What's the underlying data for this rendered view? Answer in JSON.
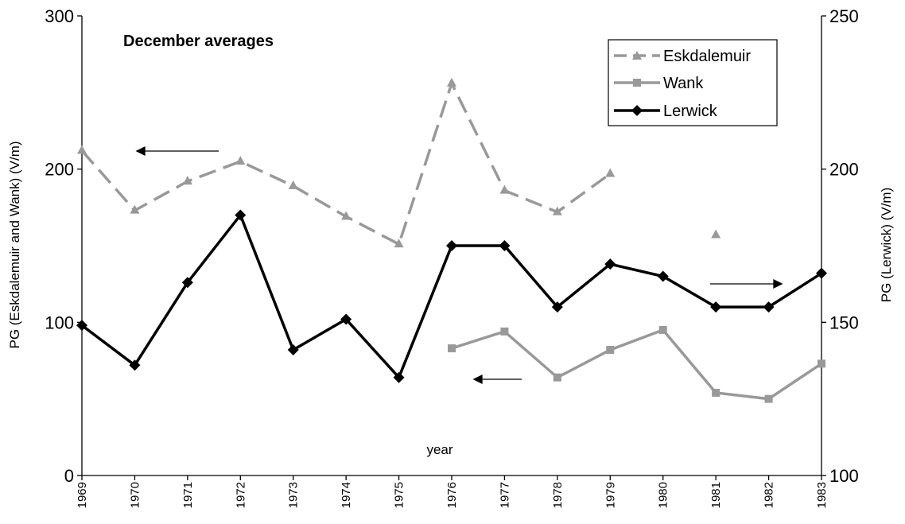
{
  "chart_data": {
    "type": "line",
    "title": "December averages",
    "xlabel": "year",
    "ylabel_left": "PG (Eskdalemuir and Wank) (V/m)",
    "ylabel_right": "PG (Lerwick) (V/m)",
    "categories": [
      "1969",
      "1970",
      "1971",
      "1972",
      "1973",
      "1974",
      "1975",
      "1976",
      "1977",
      "1978",
      "1979",
      "1980",
      "1981",
      "1982",
      "1983"
    ],
    "y_left": {
      "range": [
        0,
        300
      ],
      "ticks": [
        "0",
        "100",
        "200",
        "300"
      ]
    },
    "y_right": {
      "range": [
        100,
        250
      ],
      "ticks": [
        "100",
        "150",
        "200",
        "250"
      ]
    },
    "grid": false,
    "legend_position": "top-right",
    "series": [
      {
        "name": "Eskdalemuir",
        "axis": "left",
        "color": "#999999",
        "dashed": true,
        "marker": "triangle",
        "values": [
          212,
          173,
          192,
          205,
          189,
          169,
          151,
          256,
          186,
          172,
          197,
          null,
          157,
          null,
          null
        ]
      },
      {
        "name": "Wank",
        "axis": "left",
        "color": "#999999",
        "dashed": false,
        "marker": "square",
        "values": [
          null,
          null,
          null,
          null,
          null,
          null,
          null,
          83,
          94,
          64,
          82,
          95,
          54,
          50,
          73
        ]
      },
      {
        "name": "Lerwick",
        "axis": "right",
        "color": "#000000",
        "dashed": false,
        "marker": "diamond",
        "values": [
          149,
          136,
          163,
          185,
          141,
          151,
          132,
          175,
          175,
          155,
          169,
          165,
          155,
          155,
          166
        ]
      }
    ]
  }
}
